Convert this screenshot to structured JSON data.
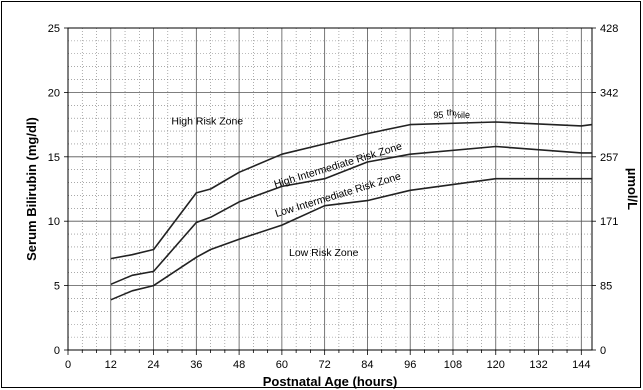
{
  "chart_data": {
    "type": "line",
    "xlabel": "Postnatal Age (hours)",
    "ylabel": "Serum Bilirubin (mg/dl)",
    "ylabel_right": "µmol/L",
    "xlim": [
      0,
      147
    ],
    "ylim": [
      0,
      25
    ],
    "x_ticks": [
      0,
      12,
      24,
      36,
      48,
      60,
      72,
      84,
      96,
      108,
      120,
      132,
      144
    ],
    "y_ticks": [
      0,
      5,
      10,
      15,
      20,
      25
    ],
    "y_ticks_right": [
      {
        "mg": 0,
        "label": "0"
      },
      {
        "mg": 5,
        "label": "85"
      },
      {
        "mg": 10,
        "label": "171"
      },
      {
        "mg": 15,
        "label": "257"
      },
      {
        "mg": 20,
        "label": "342"
      },
      {
        "mg": 25,
        "label": "428"
      }
    ],
    "grid": "dotted minor grid, solid lines at major ticks",
    "series": [
      {
        "name": "95th %ile",
        "points": [
          [
            12,
            7.1
          ],
          [
            18,
            7.4
          ],
          [
            24,
            7.8
          ],
          [
            36,
            12.2
          ],
          [
            40,
            12.5
          ],
          [
            48,
            13.8
          ],
          [
            60,
            15.2
          ],
          [
            72,
            16.0
          ],
          [
            84,
            16.8
          ],
          [
            96,
            17.5
          ],
          [
            120,
            17.7
          ],
          [
            144,
            17.4
          ],
          [
            147,
            17.5
          ]
        ]
      },
      {
        "name": "",
        "points": [
          [
            12,
            5.1
          ],
          [
            18,
            5.8
          ],
          [
            24,
            6.1
          ],
          [
            36,
            9.9
          ],
          [
            40,
            10.3
          ],
          [
            48,
            11.5
          ],
          [
            60,
            12.7
          ],
          [
            72,
            13.3
          ],
          [
            84,
            14.6
          ],
          [
            96,
            15.2
          ],
          [
            120,
            15.8
          ],
          [
            144,
            15.3
          ],
          [
            147,
            15.3
          ]
        ]
      },
      {
        "name": "",
        "points": [
          [
            12,
            3.9
          ],
          [
            18,
            4.6
          ],
          [
            24,
            5.0
          ],
          [
            36,
            7.2
          ],
          [
            40,
            7.8
          ],
          [
            48,
            8.6
          ],
          [
            60,
            9.7
          ],
          [
            72,
            11.2
          ],
          [
            84,
            11.6
          ],
          [
            96,
            12.4
          ],
          [
            120,
            13.3
          ],
          [
            147,
            13.3
          ]
        ]
      }
    ],
    "annotations": [
      {
        "text": "High Risk Zone",
        "x": 29,
        "y": 17.5,
        "rotate": 0
      },
      {
        "text": "95",
        "x": 102.5,
        "y": 18.0,
        "rotate": 0,
        "kind": "pct"
      },
      {
        "text": "th",
        "x": 106.2,
        "y": 18.2,
        "rotate": 0,
        "kind": "sup"
      },
      {
        "text": "%ile",
        "x": 108.0,
        "y": 18.0,
        "rotate": 0,
        "kind": "pct"
      },
      {
        "text": "High Intermediate Risk Zone",
        "x": 76,
        "y": 14.1,
        "rotate": -17
      },
      {
        "text": "Low Intermediate Risk Zone",
        "x": 76,
        "y": 11.8,
        "rotate": -17
      },
      {
        "text": "Low Risk Zone",
        "x": 62,
        "y": 7.3,
        "rotate": 0
      }
    ]
  }
}
